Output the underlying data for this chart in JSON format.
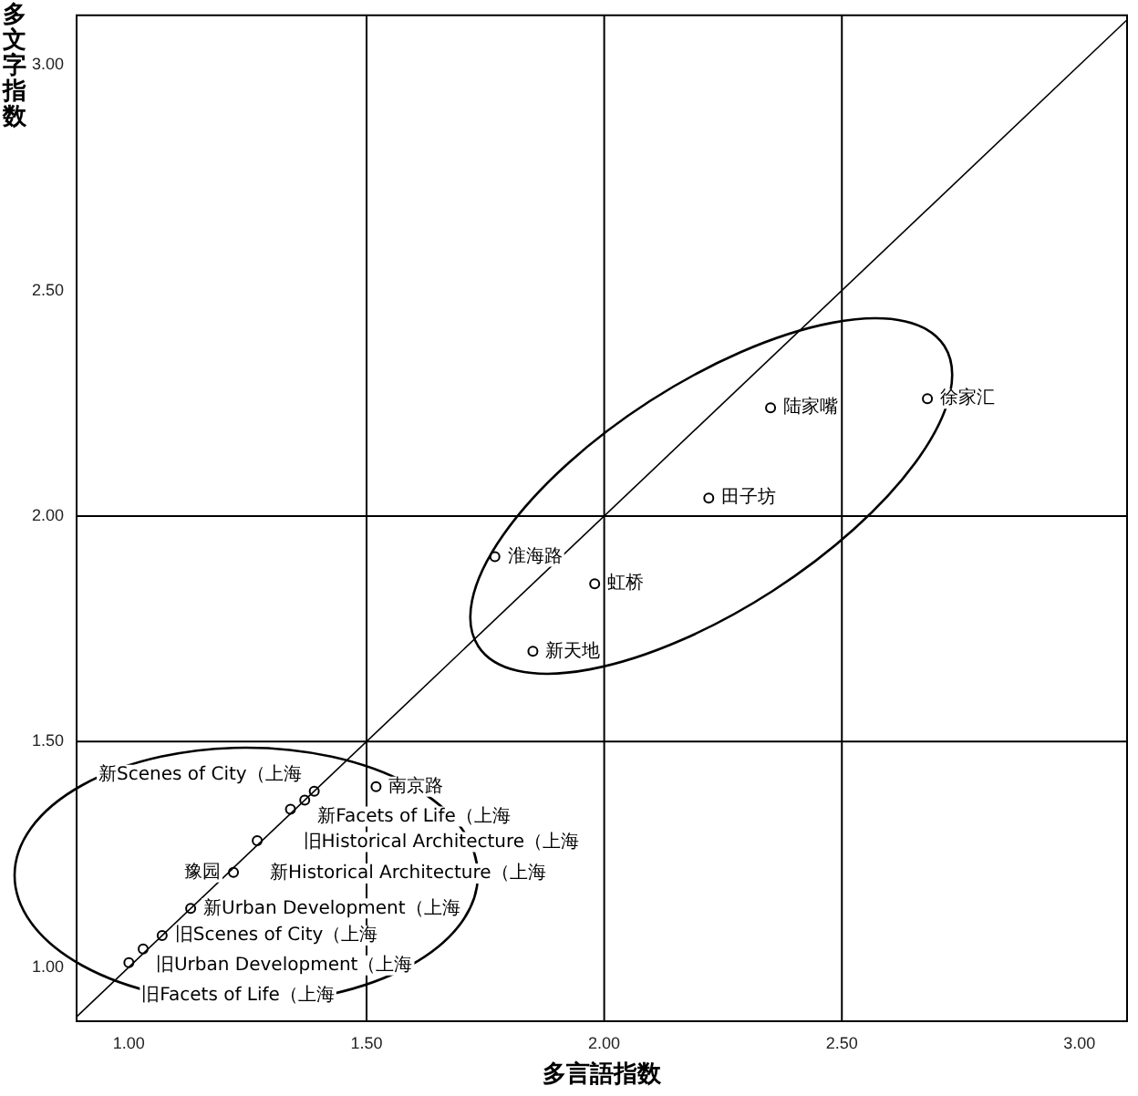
{
  "chart_data": {
    "type": "scatter",
    "xlabel": "多言語指数",
    "ylabel": "多文字指数",
    "xlim": [
      0.89,
      3.1
    ],
    "ylim": [
      0.88,
      3.11
    ],
    "xticks": [
      {
        "value": 1,
        "label": "1.00"
      },
      {
        "value": 1.5,
        "label": "1.50"
      },
      {
        "value": 2,
        "label": "2.00"
      },
      {
        "value": 2.5,
        "label": "2.50"
      },
      {
        "value": 3,
        "label": "3.00"
      }
    ],
    "yticks": [
      {
        "value": 1,
        "label": "1.00"
      },
      {
        "value": 1.5,
        "label": "1.50"
      },
      {
        "value": 2,
        "label": "2.00"
      },
      {
        "value": 2.5,
        "label": "2.50"
      },
      {
        "value": 3,
        "label": "3.00"
      }
    ],
    "grid": false,
    "legend": false,
    "series": [
      {
        "marker": "circle",
        "color": "#000000",
        "x": [
          2.35,
          2.68,
          2.22,
          1.77,
          1.98,
          1.85,
          1.52,
          1.39,
          1.37,
          1.34,
          1.27,
          1.22,
          1.13,
          1.07,
          1.03,
          1.0
        ],
        "values": [
          2.24,
          2.26,
          2.04,
          1.91,
          1.85,
          1.7,
          1.4,
          1.39,
          1.37,
          1.35,
          1.28,
          1.21,
          1.13,
          1.07,
          1.04,
          1.01
        ]
      },
      {
        "type": "line",
        "marker": "none",
        "color": "#000000",
        "x": [
          0.89,
          3.1
        ],
        "values": [
          0.89,
          3.1
        ]
      }
    ],
    "ref_lines": [
      {
        "axis": "x",
        "value": 1.5,
        "color": "#000000"
      },
      {
        "axis": "x",
        "value": 2,
        "color": "#000000"
      },
      {
        "axis": "x",
        "value": 2.5,
        "color": "#000000"
      },
      {
        "axis": "y",
        "value": 1.5,
        "color": "#000000"
      },
      {
        "axis": "y",
        "value": 2,
        "color": "#000000"
      }
    ],
    "annotations": [
      {
        "text": "陆家嘴",
        "x": 2.35,
        "y": 2.24
      },
      {
        "text": "徐家汇",
        "x": 2.68,
        "y": 2.26
      },
      {
        "text": "田子坊",
        "x": 2.22,
        "y": 2.04
      },
      {
        "text": "淮海路",
        "x": 1.77,
        "y": 1.91
      },
      {
        "text": "虹桥",
        "x": 1.98,
        "y": 1.85
      },
      {
        "text": "新天地",
        "x": 1.85,
        "y": 1.7
      },
      {
        "text": "南京路",
        "x": 1.52,
        "y": 1.4
      },
      {
        "text": "新Scenes of City（上海",
        "x": 1.39,
        "y": 1.39
      },
      {
        "text": "新Facets of Life（上海",
        "x": 1.37,
        "y": 1.37
      },
      {
        "text": "旧Historical Architecture（上海",
        "x": 1.34,
        "y": 1.35
      },
      {
        "text": "新Historical Architecture（上海",
        "x": 1.27,
        "y": 1.28
      },
      {
        "text": "豫园",
        "x": 1.22,
        "y": 1.21
      },
      {
        "text": "新Urban Development（上海",
        "x": 1.13,
        "y": 1.13
      },
      {
        "text": "旧Scenes of City（上海",
        "x": 1.07,
        "y": 1.07
      },
      {
        "text": "旧Urban Development（上海",
        "x": 1.03,
        "y": 1.04
      },
      {
        "text": "旧Facets of Life（上海",
        "x": 1.0,
        "y": 1.01
      }
    ]
  }
}
